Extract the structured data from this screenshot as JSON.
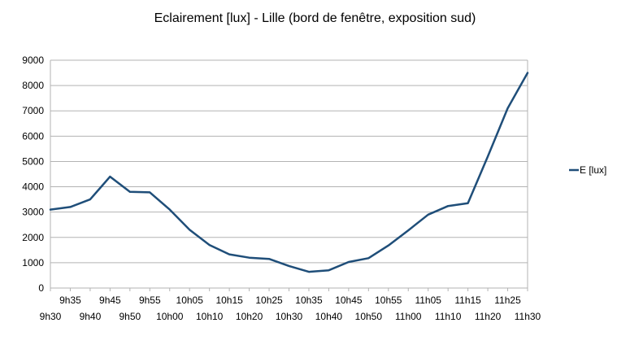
{
  "chart_data": {
    "type": "line",
    "title": "Eclairement [lux] - Lille (bord de fenêtre, exposition sud)",
    "xlabel": "",
    "ylabel": "",
    "categories": [
      "9h30",
      "9h35",
      "9h40",
      "9h45",
      "9h50",
      "9h55",
      "10h00",
      "10h05",
      "10h10",
      "10h15",
      "10h20",
      "10h25",
      "10h30",
      "10h35",
      "10h40",
      "10h45",
      "10h50",
      "10h55",
      "11h00",
      "11h05",
      "11h10",
      "11h15",
      "11h20",
      "11h25",
      "11h30"
    ],
    "ylim": [
      0,
      9000
    ],
    "yticks": [
      0,
      1000,
      2000,
      3000,
      4000,
      5000,
      6000,
      7000,
      8000,
      9000
    ],
    "grid": true,
    "legend_position": "right",
    "series": [
      {
        "name": "E [lux]",
        "color": "#1f4e79",
        "values": [
          3100,
          3200,
          3500,
          4400,
          3800,
          3780,
          3100,
          2300,
          1700,
          1330,
          1200,
          1150,
          870,
          640,
          700,
          1030,
          1180,
          1680,
          2280,
          2900,
          3240,
          3350,
          5200,
          7100,
          8500
        ]
      }
    ]
  }
}
